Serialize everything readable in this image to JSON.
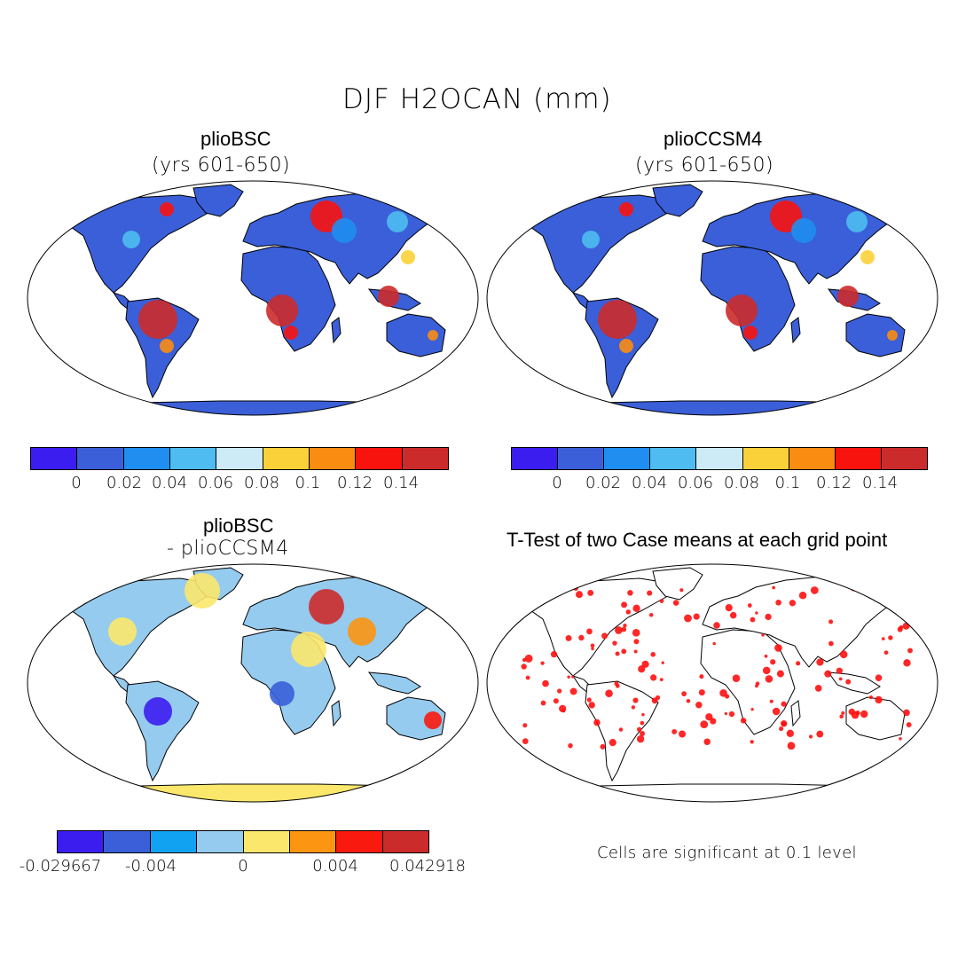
{
  "figure_title": "DJF H2OCAN (mm)",
  "panels": [
    {
      "title": "plioBSC",
      "subtitle": "(yrs 601-650)"
    },
    {
      "title": "plioCCSM4",
      "subtitle": "(yrs 601-650)"
    },
    {
      "title": "plioBSC",
      "subtitle": "- plioCCSM4"
    },
    {
      "title": "T-Test of two Case means at each grid point",
      "subtitle": ""
    }
  ],
  "colorbars": {
    "absolute": {
      "colors": [
        "#3c1df0",
        "#3a5fd8",
        "#1f8ef0",
        "#4ebcf0",
        "#cdeaf7",
        "#fbd13a",
        "#fb8c12",
        "#f9130f",
        "#cc2b2b"
      ],
      "labels": [
        "0",
        "0.02",
        "0.04",
        "0.06",
        "0.08",
        "0.1",
        "0.12",
        "0.14"
      ]
    },
    "difference": {
      "colors": [
        "#3c1df0",
        "#3a5fd8",
        "#12a2f2",
        "#95cbee",
        "#fbe76b",
        "#fb9512",
        "#f9190f",
        "#cc2b2b"
      ],
      "labels": [
        "-0.029667",
        "-0.004",
        "0",
        "0.004",
        "0.042918"
      ]
    }
  },
  "significance_note": "Cells are significant at 0.1 level"
}
